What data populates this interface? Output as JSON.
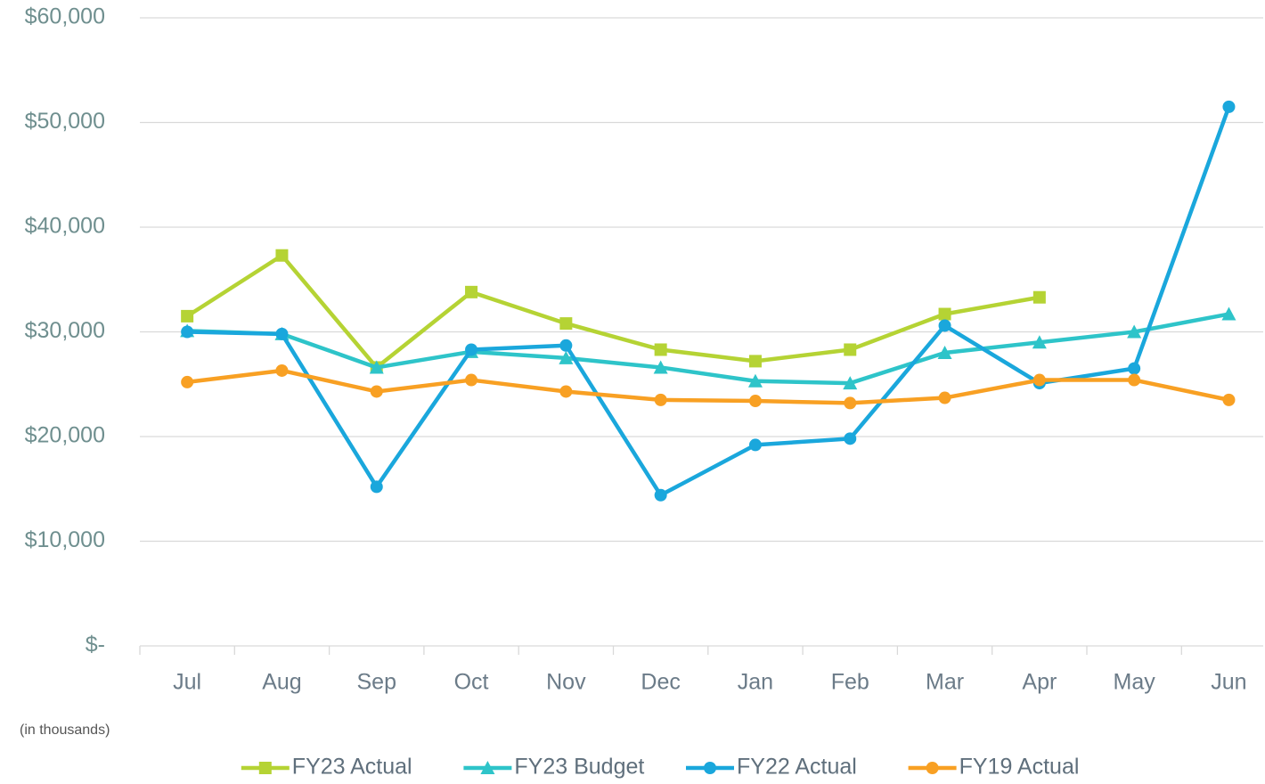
{
  "chart_data": {
    "type": "line",
    "annotation": "(in thousands)",
    "categories": [
      "Jul",
      "Aug",
      "Sep",
      "Oct",
      "Nov",
      "Dec",
      "Jan",
      "Feb",
      "Mar",
      "Apr",
      "May",
      "Jun"
    ],
    "series": [
      {
        "name": "FY23 Actual",
        "color": "#b5d334",
        "marker": "square",
        "values": [
          31500,
          37300,
          26600,
          33800,
          30800,
          28300,
          27200,
          28300,
          31700,
          33300,
          null,
          null
        ]
      },
      {
        "name": "FY23 Budget",
        "color": "#2ec4c9",
        "marker": "triangle",
        "values": [
          30100,
          29800,
          26600,
          28100,
          27500,
          26600,
          25300,
          25100,
          28000,
          29000,
          30000,
          31700
        ]
      },
      {
        "name": "FY22 Actual",
        "color": "#1aa7dc",
        "marker": "circle",
        "values": [
          30000,
          29800,
          15200,
          28300,
          28700,
          14400,
          19200,
          19800,
          30600,
          25100,
          26500,
          51500
        ]
      },
      {
        "name": "FY19 Actual",
        "color": "#f8a023",
        "marker": "circle",
        "values": [
          25200,
          26300,
          24300,
          25400,
          24300,
          23500,
          23400,
          23200,
          23700,
          25400,
          25400,
          23500
        ]
      }
    ],
    "ylim": [
      0,
      60000
    ],
    "yticks": [
      {
        "value": 0,
        "label": "$-"
      },
      {
        "value": 10000,
        "label": "$10,000"
      },
      {
        "value": 20000,
        "label": "$20,000"
      },
      {
        "value": 30000,
        "label": "$30,000"
      },
      {
        "value": 40000,
        "label": "$40,000"
      },
      {
        "value": 50000,
        "label": "$50,000"
      },
      {
        "value": 60000,
        "label": "$60,000"
      }
    ],
    "grid": true,
    "legend": "bottom"
  }
}
